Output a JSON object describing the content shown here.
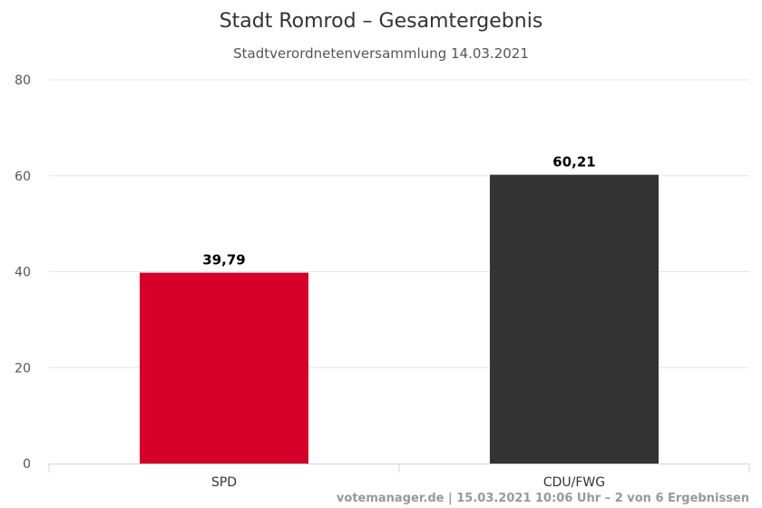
{
  "chart_data": {
    "type": "bar",
    "title": "Stadt Romrod – Gesamtergebnis",
    "subtitle": "Stadtverordnetenversammlung 14.03.2021",
    "xlabel": "",
    "ylabel": "",
    "categories": [
      "SPD",
      "CDU/FWG"
    ],
    "values": [
      39.79,
      60.21
    ],
    "value_labels": [
      "39,79",
      "60,21"
    ],
    "colors": [
      "#d50029",
      "#333333"
    ],
    "ylim": [
      0,
      80
    ],
    "yticks": [
      0,
      20,
      40,
      60,
      80
    ],
    "grid": true,
    "legend": "none"
  },
  "credits": "votemanager.de | 15.03.2021 10:06 Uhr – 2 von 6 Ergebnissen"
}
